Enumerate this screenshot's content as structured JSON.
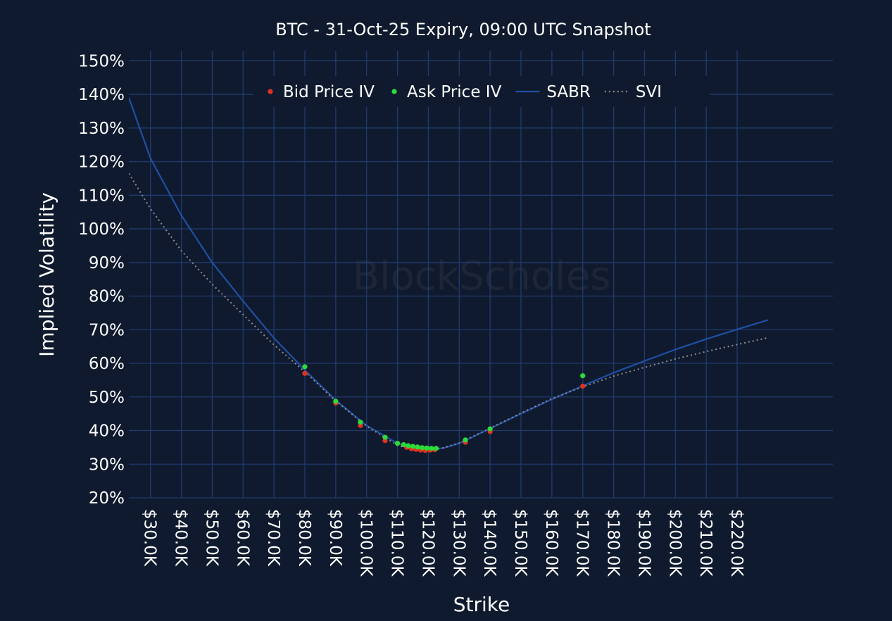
{
  "watermark": "BlockScholes",
  "colors": {
    "background": "#0f1a2e",
    "grid": "#213a6e",
    "bid": "#e0321e",
    "ask": "#2bdc3a",
    "sabr": "#1f4fa3",
    "svi": "#8e8e8e",
    "text": "#ffffff"
  },
  "chart_data": {
    "type": "scatter",
    "title": "BTC - 31-Oct-25 Expiry, 09:00 UTC Snapshot",
    "xlabel": "Strike",
    "ylabel": "Implied Volatility",
    "xlim": [
      23000,
      251000
    ],
    "ylim": [
      20,
      153
    ],
    "grid": true,
    "legend_position": "top-center",
    "x_ticks": [
      30000,
      40000,
      50000,
      60000,
      70000,
      80000,
      90000,
      100000,
      110000,
      120000,
      130000,
      140000,
      150000,
      160000,
      170000,
      180000,
      190000,
      200000,
      210000,
      220000
    ],
    "x_tick_labels": [
      "$30.0K",
      "$40.0K",
      "$50.0K",
      "$60.0K",
      "$70.0K",
      "$80.0K",
      "$90.0K",
      "$100.0K",
      "$110.0K",
      "$120.0K",
      "$130.0K",
      "$140.0K",
      "$150.0K",
      "$160.0K",
      "$170.0K",
      "$180.0K",
      "$190.0K",
      "$200.0K",
      "$210.0K",
      "$220.0K"
    ],
    "y_ticks": [
      20,
      30,
      40,
      50,
      60,
      70,
      80,
      90,
      100,
      110,
      120,
      130,
      140,
      150
    ],
    "y_tick_labels": [
      "20%",
      "30%",
      "40%",
      "50%",
      "60%",
      "70%",
      "80%",
      "90%",
      "100%",
      "110%",
      "120%",
      "130%",
      "140%",
      "150%"
    ],
    "series": [
      {
        "name": "Bid Price IV",
        "kind": "markers",
        "color": "#e0321e",
        "points": [
          [
            80000,
            57.0
          ],
          [
            90000,
            48.2
          ],
          [
            98000,
            41.5
          ],
          [
            106000,
            37.0
          ],
          [
            113000,
            35.0
          ],
          [
            114500,
            34.6
          ],
          [
            116000,
            34.4
          ],
          [
            117500,
            34.2
          ],
          [
            119000,
            34.1
          ],
          [
            120500,
            34.2
          ],
          [
            122000,
            34.3
          ],
          [
            132000,
            36.5
          ],
          [
            140000,
            39.7
          ],
          [
            170000,
            53.2
          ]
        ]
      },
      {
        "name": "Ask Price IV",
        "kind": "markers",
        "color": "#2bdc3a",
        "points": [
          [
            80000,
            59.0
          ],
          [
            90000,
            48.7
          ],
          [
            98000,
            42.5
          ],
          [
            106000,
            38.0
          ],
          [
            110000,
            36.2
          ],
          [
            112000,
            35.8
          ],
          [
            113500,
            35.5
          ],
          [
            115000,
            35.3
          ],
          [
            116500,
            35.1
          ],
          [
            118000,
            34.9
          ],
          [
            119500,
            34.8
          ],
          [
            121000,
            34.7
          ],
          [
            122500,
            34.7
          ],
          [
            132000,
            37.2
          ],
          [
            140000,
            40.5
          ],
          [
            170000,
            56.3
          ]
        ]
      },
      {
        "name": "SABR",
        "kind": "line",
        "color": "#1f4fa3",
        "points": [
          [
            23000,
            139
          ],
          [
            30000,
            121
          ],
          [
            40000,
            104
          ],
          [
            50000,
            90
          ],
          [
            60000,
            78.5
          ],
          [
            70000,
            67.5
          ],
          [
            80000,
            58
          ],
          [
            90000,
            49
          ],
          [
            100000,
            41.5
          ],
          [
            110000,
            36.2
          ],
          [
            115000,
            35.0
          ],
          [
            120000,
            34.3
          ],
          [
            125000,
            34.8
          ],
          [
            130000,
            36.2
          ],
          [
            140000,
            40.6
          ],
          [
            150000,
            45.0
          ],
          [
            160000,
            49.3
          ],
          [
            170000,
            53.3
          ],
          [
            180000,
            57.2
          ],
          [
            190000,
            60.7
          ],
          [
            200000,
            64.1
          ],
          [
            210000,
            67.2
          ],
          [
            220000,
            70.1
          ],
          [
            230000,
            72.9
          ]
        ]
      },
      {
        "name": "SVI",
        "kind": "line",
        "dash": "dotted",
        "color": "#8e8e8e",
        "points": [
          [
            23000,
            116.5
          ],
          [
            30000,
            106
          ],
          [
            40000,
            93.5
          ],
          [
            50000,
            83.5
          ],
          [
            60000,
            74.5
          ],
          [
            70000,
            65.5
          ],
          [
            80000,
            57.5
          ],
          [
            90000,
            48.8
          ],
          [
            100000,
            41.3
          ],
          [
            110000,
            35.6
          ],
          [
            115000,
            34.3
          ],
          [
            120000,
            34.0
          ],
          [
            125000,
            34.9
          ],
          [
            130000,
            36.3
          ],
          [
            140000,
            40.7
          ],
          [
            150000,
            45.2
          ],
          [
            160000,
            49.5
          ],
          [
            170000,
            53.0
          ],
          [
            180000,
            56.2
          ],
          [
            190000,
            58.8
          ],
          [
            200000,
            61.3
          ],
          [
            210000,
            63.5
          ],
          [
            220000,
            65.6
          ],
          [
            230000,
            67.6
          ]
        ]
      }
    ]
  }
}
